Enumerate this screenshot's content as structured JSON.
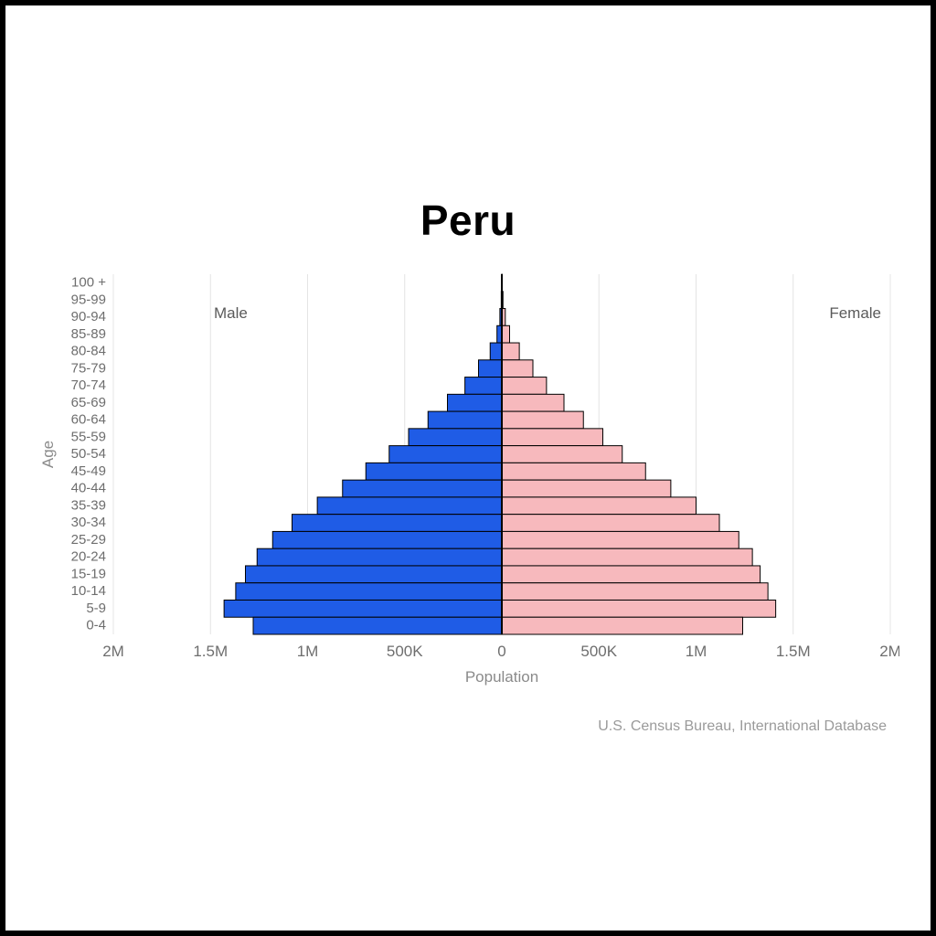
{
  "chart": {
    "type": "population_pyramid",
    "title": "Peru",
    "title_fontsize": 46,
    "title_weight": 800,
    "x_axis": {
      "label": "Population",
      "max": 2000000,
      "ticks": [
        {
          "pos": -2000000,
          "label": "2M"
        },
        {
          "pos": -1500000,
          "label": "1.5M"
        },
        {
          "pos": -1000000,
          "label": "1M"
        },
        {
          "pos": -500000,
          "label": "500K"
        },
        {
          "pos": 0,
          "label": "0"
        },
        {
          "pos": 500000,
          "label": "500K"
        },
        {
          "pos": 1000000,
          "label": "1M"
        },
        {
          "pos": 1500000,
          "label": "1.5M"
        },
        {
          "pos": 2000000,
          "label": "2M"
        }
      ]
    },
    "y_axis": {
      "label": "Age",
      "categories": [
        "100 +",
        "95-99",
        "90-94",
        "85-89",
        "80-84",
        "75-79",
        "70-74",
        "65-69",
        "60-64",
        "55-59",
        "50-54",
        "45-49",
        "40-44",
        "35-39",
        "30-34",
        "25-29",
        "20-24",
        "15-19",
        "10-14",
        "5-9",
        "0-4"
      ]
    },
    "series": {
      "male": {
        "label": "Male",
        "color": "#1f5ce6",
        "border": "#000000",
        "values": [
          500,
          3000,
          10000,
          25000,
          60000,
          120000,
          190000,
          280000,
          380000,
          480000,
          580000,
          700000,
          820000,
          950000,
          1080000,
          1180000,
          1260000,
          1320000,
          1370000,
          1430000,
          1280000
        ]
      },
      "female": {
        "label": "Female",
        "color": "#f7b9bd",
        "border": "#000000",
        "values": [
          1500,
          6000,
          18000,
          40000,
          90000,
          160000,
          230000,
          320000,
          420000,
          520000,
          620000,
          740000,
          870000,
          1000000,
          1120000,
          1220000,
          1290000,
          1330000,
          1370000,
          1410000,
          1240000
        ]
      }
    },
    "grid_color": "#e4e4e4",
    "grid_xpositions": [
      -2000000,
      -1500000,
      -1000000,
      -500000,
      500000,
      1000000,
      1500000,
      2000000
    ],
    "center_line_color": "#000000",
    "background_color": "#ffffff",
    "tick_fontsize": 15,
    "xtick_fontsize": 17,
    "label_fontsize": 17,
    "bar_gap": 0
  },
  "footer": "U.S. Census Bureau, International Database"
}
